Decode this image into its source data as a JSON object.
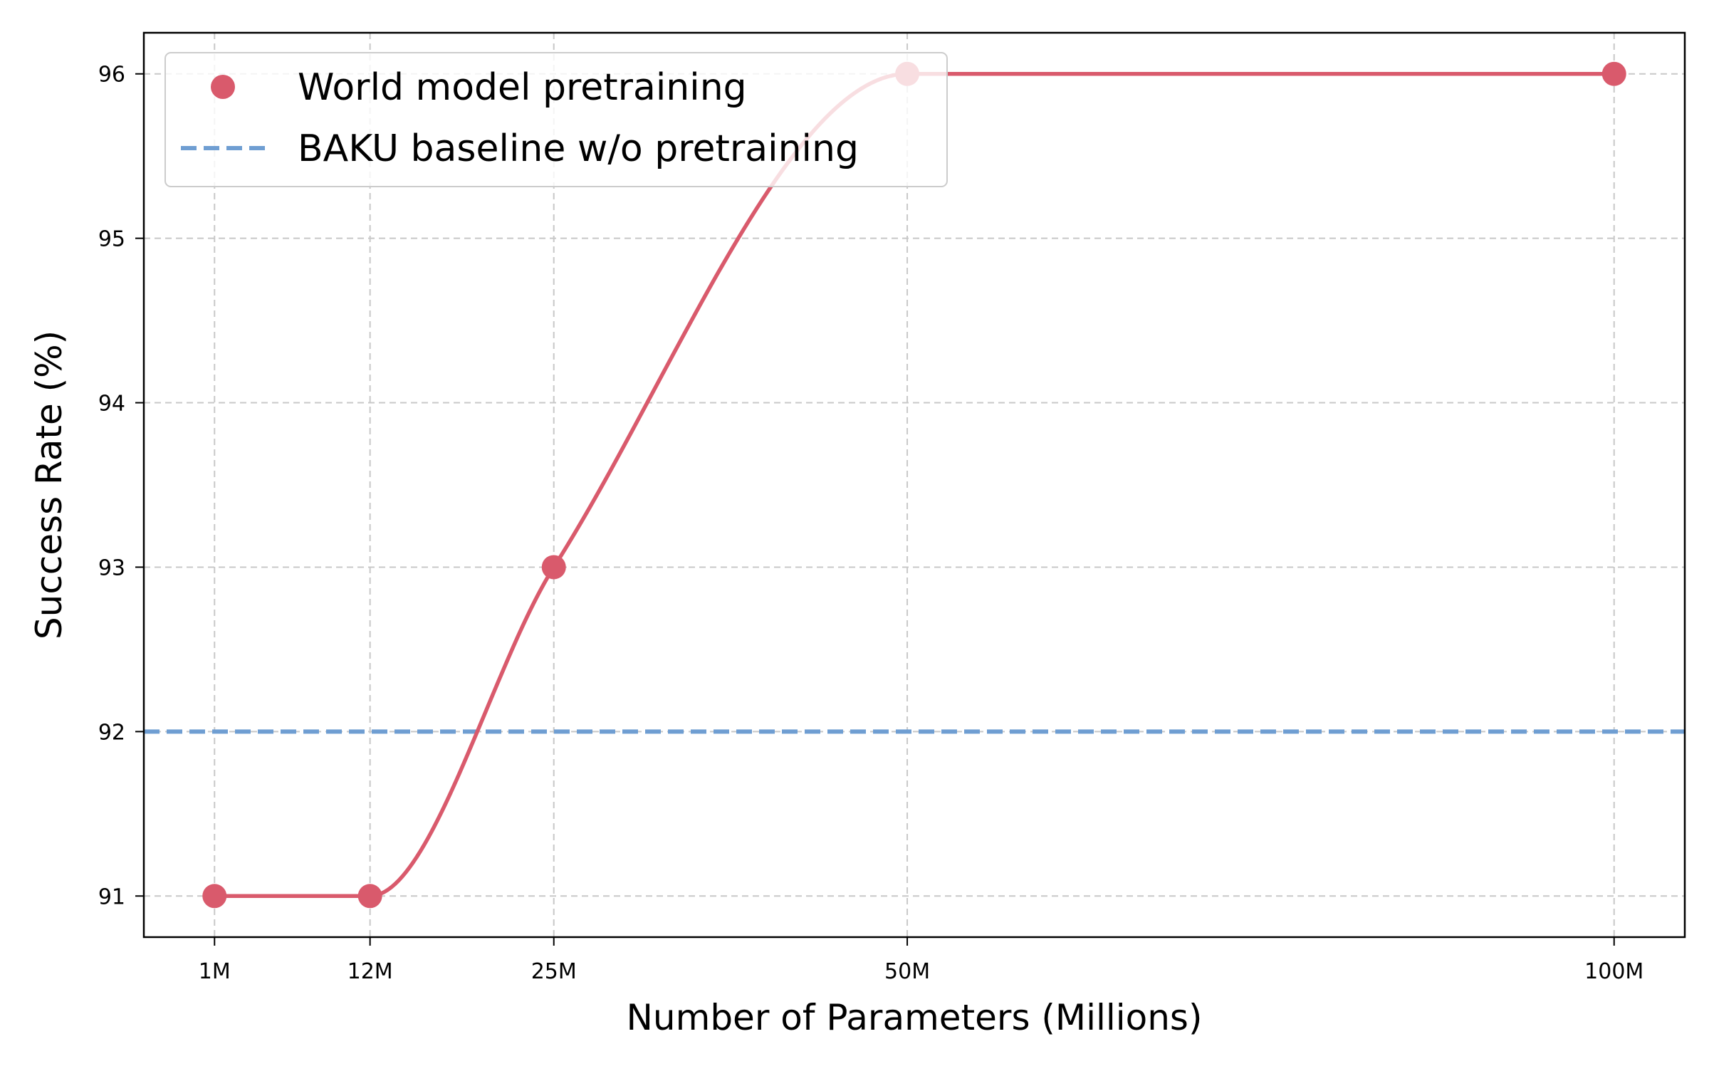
{
  "chart_data": {
    "type": "line",
    "title": "",
    "xlabel": "Number of Parameters (Millions)",
    "ylabel": "Success Rate (%)",
    "x_ticks": [
      {
        "value": 1,
        "label": "1M"
      },
      {
        "value": 12,
        "label": "12M"
      },
      {
        "value": 25,
        "label": "25M"
      },
      {
        "value": 50,
        "label": "50M"
      },
      {
        "value": 100,
        "label": "100M"
      }
    ],
    "y_ticks": [
      {
        "value": 91,
        "label": "91"
      },
      {
        "value": 92,
        "label": "92"
      },
      {
        "value": 93,
        "label": "93"
      },
      {
        "value": 94,
        "label": "94"
      },
      {
        "value": 95,
        "label": "95"
      },
      {
        "value": 96,
        "label": "96"
      }
    ],
    "xlim": [
      -4,
      105
    ],
    "ylim": [
      90.75,
      96.25
    ],
    "grid": true,
    "series": [
      {
        "name": "World model pretraining",
        "kind": "line-with-markers",
        "color": "#d95a6c",
        "x": [
          1,
          12,
          25,
          50,
          100
        ],
        "y": [
          91,
          91,
          93,
          96,
          96
        ]
      },
      {
        "name": "BAKU baseline w/o pretraining",
        "kind": "horizontal-dashed",
        "color": "#6f9ed2",
        "y": 92
      }
    ],
    "legend": {
      "position": "top-left",
      "entries": [
        "World model pretraining",
        "BAKU baseline w/o pretraining"
      ]
    }
  }
}
